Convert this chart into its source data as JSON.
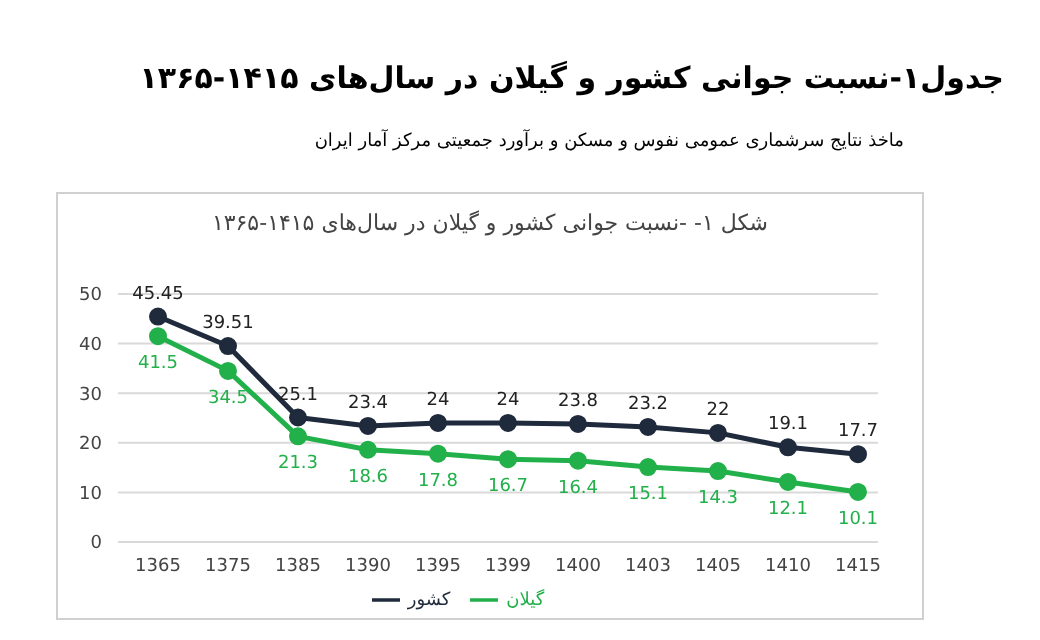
{
  "chart_data": {
    "type": "line",
    "title": "جدول۱-نسبت جوانی کشور و گیلان در سال‌های ۱۴۱۵-۱۳۶۵",
    "subtitle": "شکل ۱- -نسبت جوانی کشور و گیلان در سال‌های ۱۴۱۵-۱۳۶۵",
    "annotations": [
      "ماخذ نتایج سرشماری عمومی نفوس و مسکن و برآورد جمعیتی مرکز آمار ایران"
    ],
    "categories": [
      "1365",
      "1375",
      "1385",
      "1390",
      "1395",
      "1399",
      "1400",
      "1403",
      "1405",
      "1410",
      "1415"
    ],
    "series": [
      {
        "name": "کشور",
        "color": "#1f2a3c",
        "values": [
          45.45,
          39.51,
          25.1,
          23.4,
          24,
          24,
          23.8,
          23.2,
          22,
          19.1,
          17.7
        ]
      },
      {
        "name": "گیلان",
        "color": "#22b04a",
        "values": [
          41.5,
          34.5,
          21.3,
          18.6,
          17.8,
          16.7,
          16.4,
          15.1,
          14.3,
          12.1,
          10.1
        ]
      }
    ],
    "ylim": [
      0,
      50
    ],
    "yticks": [
      0,
      10,
      20,
      30,
      40,
      50
    ],
    "grid": "y",
    "legend": "bottom",
    "marker": "circle",
    "line_style": "solid",
    "data_labels": true
  }
}
